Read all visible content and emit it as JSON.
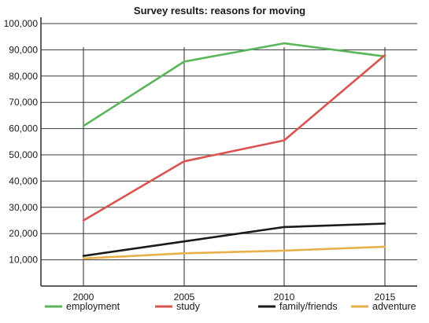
{
  "chart_data": {
    "type": "line",
    "title": "Survey results: reasons for moving",
    "xlabel": "",
    "ylabel": "",
    "categories": [
      "2000",
      "2005",
      "2010",
      "2015"
    ],
    "y_tick_labels": [
      "10,000",
      "20,000",
      "30,000",
      "40,000",
      "50,000",
      "60,000",
      "70,000",
      "80,000",
      "90,000",
      "100,000"
    ],
    "y_ticks": [
      10000,
      20000,
      30000,
      40000,
      50000,
      60000,
      70000,
      80000,
      90000,
      100000
    ],
    "ylim": [
      0,
      100000
    ],
    "grid": "horizontal",
    "legend_position": "bottom",
    "series": [
      {
        "name": "employment",
        "color": "#5bb65b",
        "values": [
          61000,
          85500,
          92500,
          87500
        ]
      },
      {
        "name": "study",
        "color": "#d9534f",
        "values": [
          25000,
          47500,
          55500,
          88000
        ]
      },
      {
        "name": "family/friends",
        "color": "#1a1a1a",
        "values": [
          11500,
          17000,
          22500,
          23800
        ]
      },
      {
        "name": "adventure",
        "color": "#e8b04a",
        "values": [
          10500,
          12500,
          13500,
          15000
        ]
      }
    ]
  }
}
